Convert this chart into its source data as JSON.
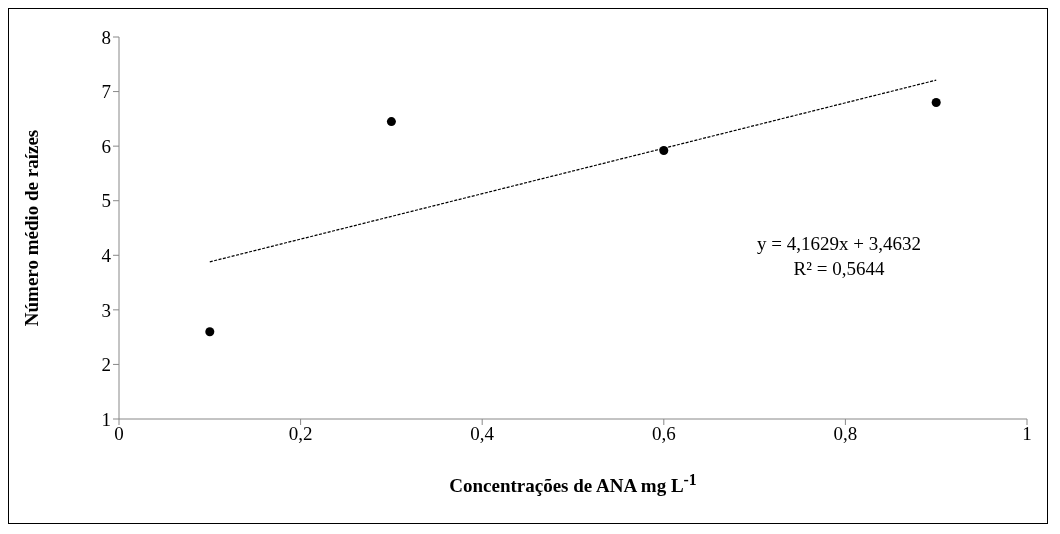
{
  "chart_data": {
    "type": "scatter",
    "xlabel": "Concentrações de ANA mg L$^{-1}$",
    "ylabel": "Número médio de raízes",
    "series": [
      {
        "color": "#000000",
        "x": [
          0.1,
          0.3,
          0.6,
          0.9
        ],
        "values": [
          2.6,
          6.45,
          5.92,
          6.8
        ],
        "marker": "circle"
      },
      {
        "type": "line",
        "color": "#000000",
        "x": [
          0.1,
          0.9
        ],
        "values": [
          3.88,
          7.21
        ],
        "line_style": "dashed",
        "marker": "none"
      }
    ],
    "xlim": [
      0,
      1
    ],
    "xticks": [
      0,
      {
        "value": 0.2,
        "label": "0,2"
      },
      {
        "value": 0.4,
        "label": "0,4"
      },
      {
        "value": 0.6,
        "label": "0,6"
      },
      {
        "value": 0.8,
        "label": "0,8"
      },
      1
    ],
    "ylim": [
      1,
      8
    ],
    "yticks": [
      1,
      2,
      3,
      4,
      5,
      6,
      7,
      8
    ],
    "annotations": [
      "y = 4,1629x + 3,4632",
      "R² = 0,5644"
    ]
  }
}
